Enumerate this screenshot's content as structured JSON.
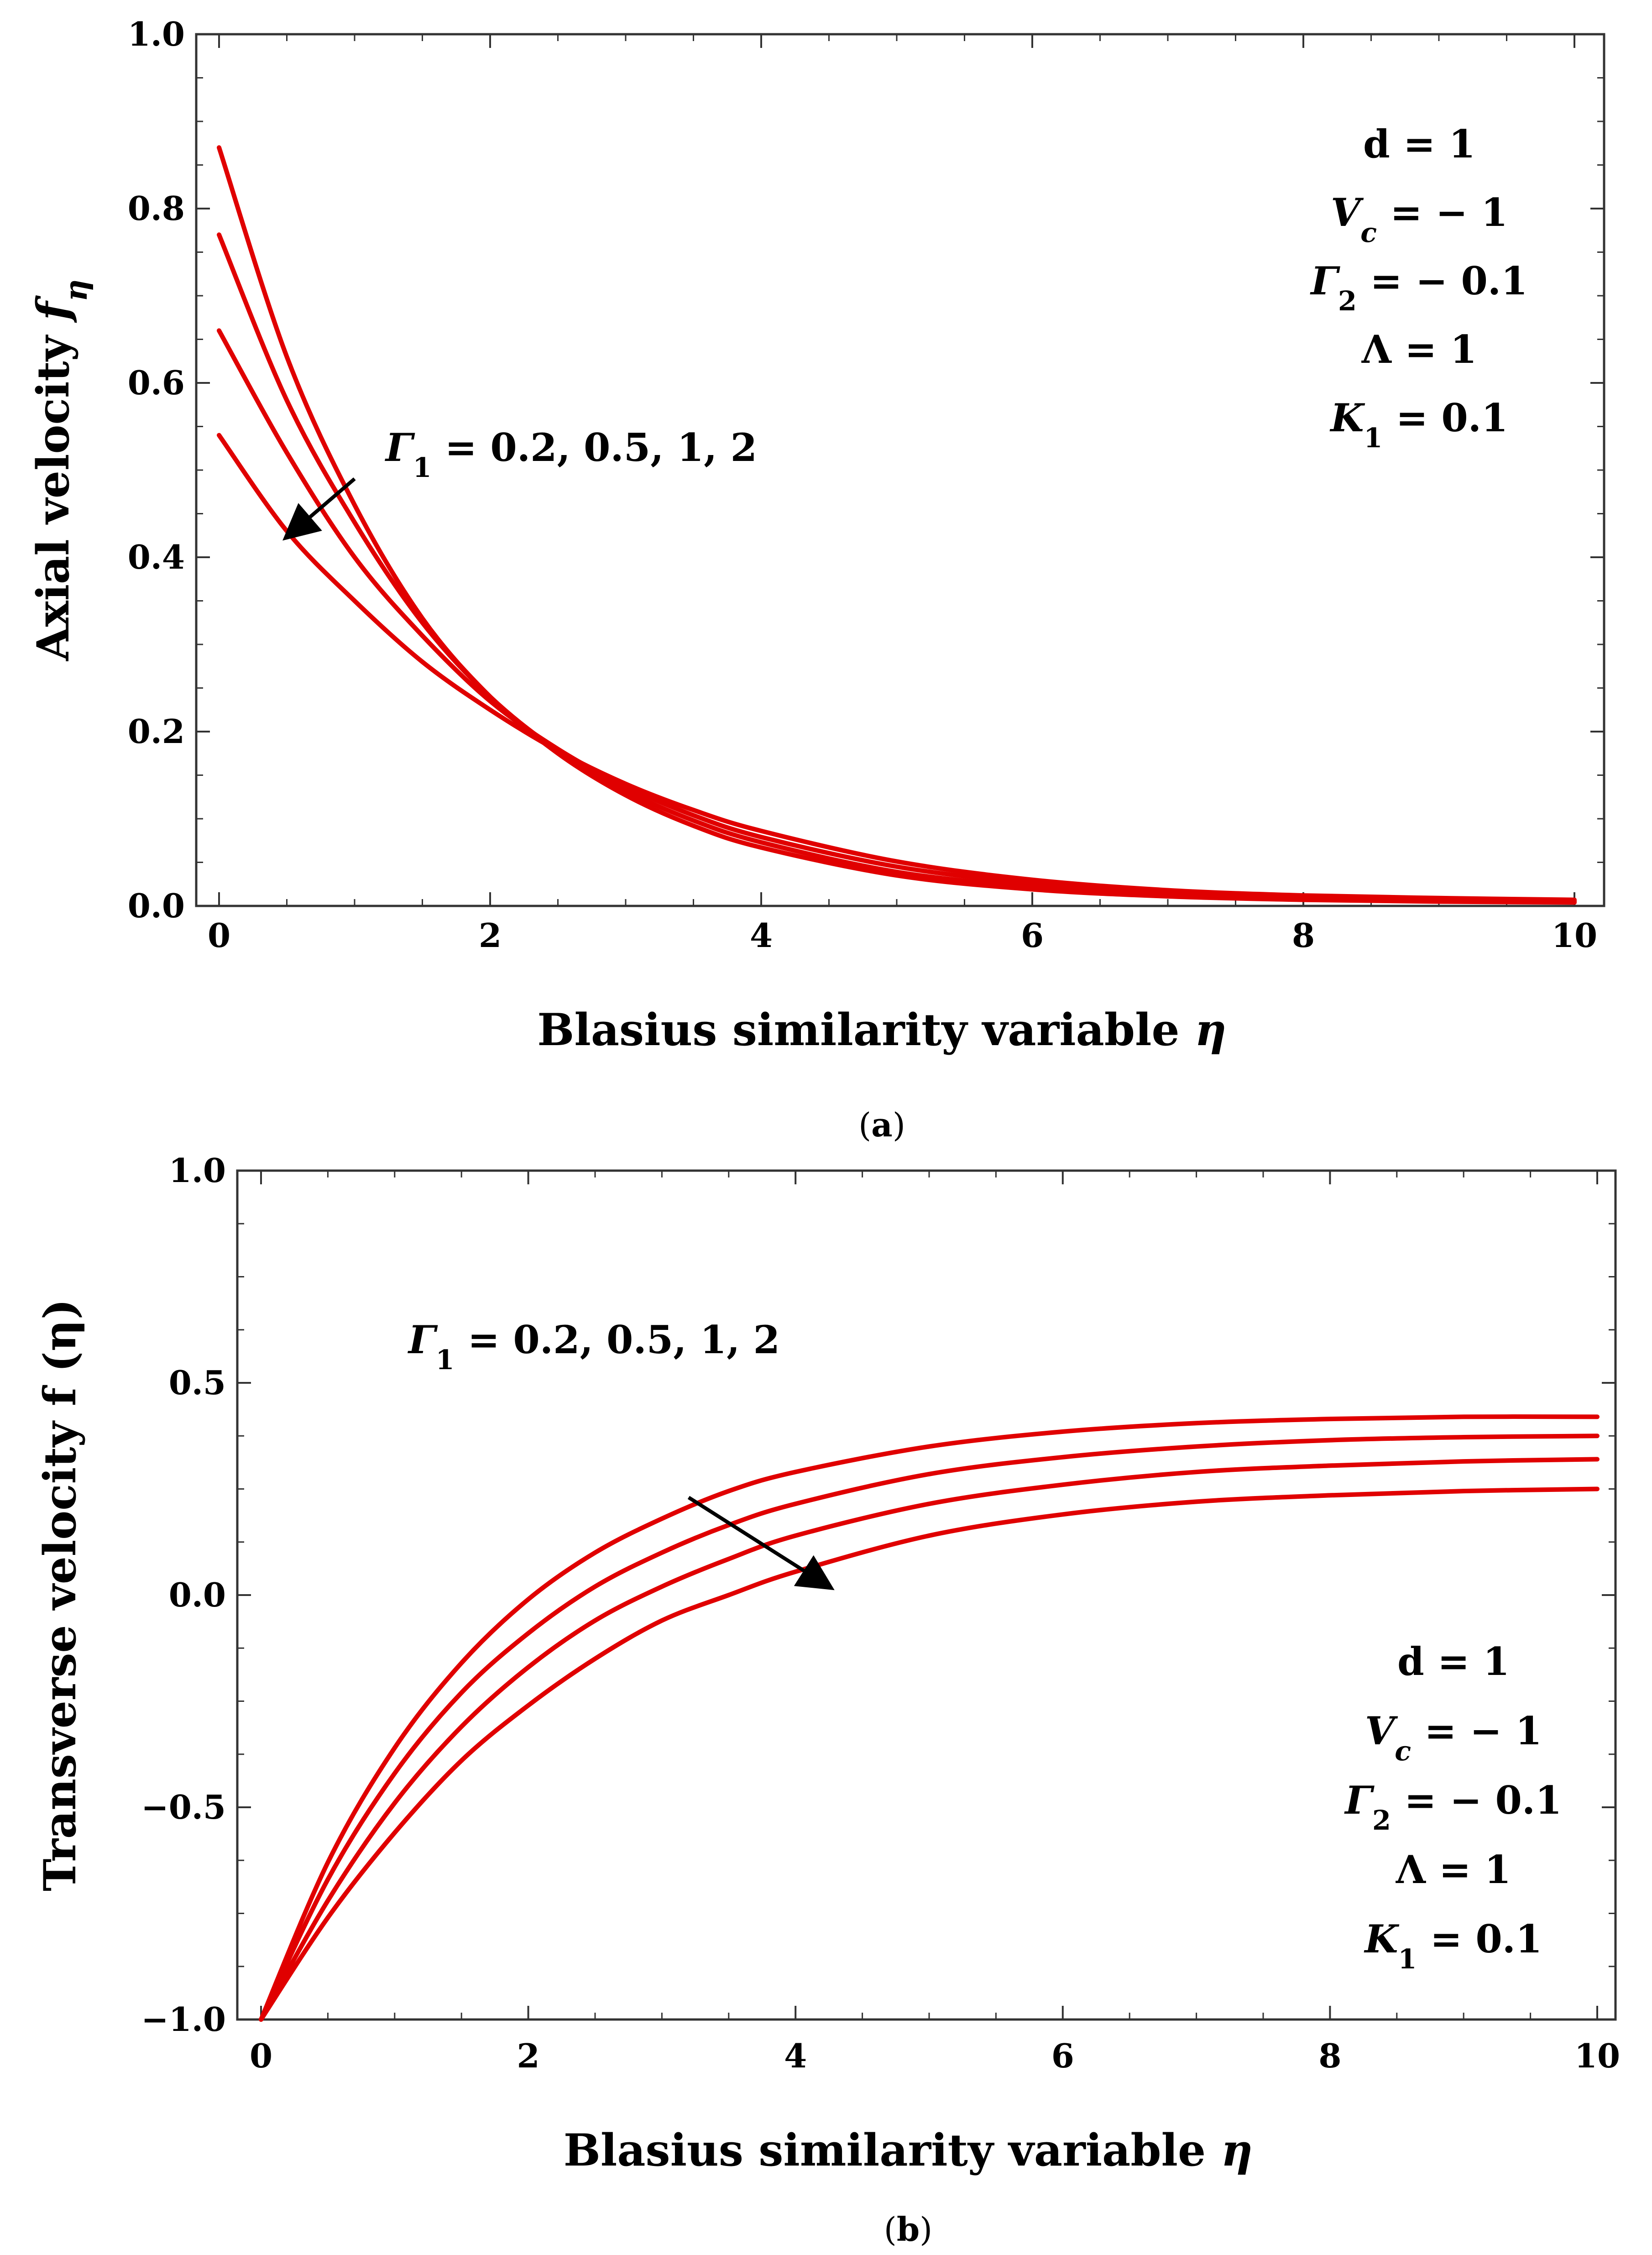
{
  "chart_data": [
    {
      "type": "line",
      "panel_label": "(a)",
      "xlabel": "Blasius similarity variable η",
      "ylabel": "Axial velocity f_η",
      "xlim": [
        0,
        10
      ],
      "ylim": [
        0,
        1
      ],
      "xticks": [
        0,
        2,
        4,
        6,
        8,
        10
      ],
      "yticks": [
        0.0,
        0.2,
        0.4,
        0.6,
        0.8,
        1.0
      ],
      "xtick_labels": [
        "0",
        "2",
        "4",
        "6",
        "8",
        "10"
      ],
      "ytick_labels": [
        "0.0",
        "0.2",
        "0.4",
        "0.6",
        "0.8",
        "1.0"
      ],
      "x": [
        0,
        0.5,
        1,
        1.5,
        2,
        2.5,
        3,
        3.5,
        4,
        5,
        6,
        7,
        8,
        9,
        10
      ],
      "series": [
        {
          "name": "Γ1 = 0.2",
          "values": [
            0.87,
            0.63,
            0.46,
            0.33,
            0.24,
            0.175,
            0.127,
            0.092,
            0.067,
            0.035,
            0.019,
            0.011,
            0.007,
            0.005,
            0.004
          ]
        },
        {
          "name": "Γ1 = 0.5",
          "values": [
            0.77,
            0.58,
            0.44,
            0.325,
            0.24,
            0.178,
            0.132,
            0.098,
            0.073,
            0.039,
            0.022,
            0.013,
            0.008,
            0.006,
            0.005
          ]
        },
        {
          "name": "Γ1 = 1",
          "values": [
            0.66,
            0.52,
            0.4,
            0.31,
            0.235,
            0.18,
            0.137,
            0.104,
            0.079,
            0.045,
            0.026,
            0.015,
            0.01,
            0.007,
            0.006
          ]
        },
        {
          "name": "Γ1 = 2",
          "values": [
            0.54,
            0.43,
            0.35,
            0.28,
            0.225,
            0.178,
            0.14,
            0.11,
            0.086,
            0.051,
            0.03,
            0.018,
            0.012,
            0.009,
            0.007
          ]
        }
      ],
      "annotation": {
        "text": "Γ1 = 0.2, 0.5, 1, 2",
        "arrow_from": [
          1.0,
          0.49
        ],
        "arrow_to": [
          0.55,
          0.43
        ]
      },
      "parameters": [
        "d = 1",
        "Vc = − 1",
        "Γ2 = − 0.1",
        "Λ = 1",
        "K1 = 0.1"
      ],
      "parameters_anchor": [
        8.8,
        0.87
      ]
    },
    {
      "type": "line",
      "panel_label": "(b)",
      "xlabel": "Blasius similarity variable η",
      "ylabel": "Transverse velocity f (η)",
      "xlim": [
        0,
        10
      ],
      "ylim": [
        -1,
        1
      ],
      "xticks": [
        0,
        2,
        4,
        6,
        8,
        10
      ],
      "yticks": [
        -1.0,
        -0.5,
        0.0,
        0.5,
        1.0
      ],
      "xtick_labels": [
        "0",
        "2",
        "4",
        "6",
        "8",
        "10"
      ],
      "ytick_labels": [
        "−1.0",
        "−0.5",
        "0.0",
        "0.5",
        "1.0"
      ],
      "x": [
        0,
        0.5,
        1,
        1.5,
        2,
        2.5,
        3,
        3.5,
        4,
        5,
        6,
        7,
        8,
        9,
        10
      ],
      "series": [
        {
          "name": "Γ1 = 0.2",
          "values": [
            -1.0,
            -0.63,
            -0.36,
            -0.16,
            -0.01,
            0.1,
            0.18,
            0.245,
            0.29,
            0.35,
            0.385,
            0.405,
            0.415,
            0.42,
            0.42
          ]
        },
        {
          "name": "Γ1 = 0.5",
          "values": [
            -1.0,
            -0.67,
            -0.42,
            -0.23,
            -0.09,
            0.02,
            0.1,
            0.165,
            0.215,
            0.285,
            0.325,
            0.35,
            0.365,
            0.372,
            0.375
          ]
        },
        {
          "name": "Γ1 = 1",
          "values": [
            -1.0,
            -0.72,
            -0.49,
            -0.31,
            -0.17,
            -0.06,
            0.02,
            0.085,
            0.14,
            0.215,
            0.26,
            0.29,
            0.305,
            0.315,
            0.32
          ]
        },
        {
          "name": "Γ1 = 2",
          "values": [
            -1.0,
            -0.76,
            -0.56,
            -0.39,
            -0.26,
            -0.15,
            -0.06,
            0.0,
            0.055,
            0.14,
            0.19,
            0.22,
            0.235,
            0.245,
            0.25
          ]
        }
      ],
      "annotation": {
        "text": "Γ1 = 0.2, 0.5, 1, 2",
        "arrow_from": [
          3.2,
          0.23
        ],
        "arrow_to": [
          4.2,
          0.03
        ]
      },
      "parameters": [
        "d = 1",
        "Vc = − 1",
        "Γ2 = − 0.1",
        "Λ = 1",
        "K1 = 0.1"
      ],
      "parameters_anchor": [
        9.0,
        -0.23
      ]
    }
  ]
}
